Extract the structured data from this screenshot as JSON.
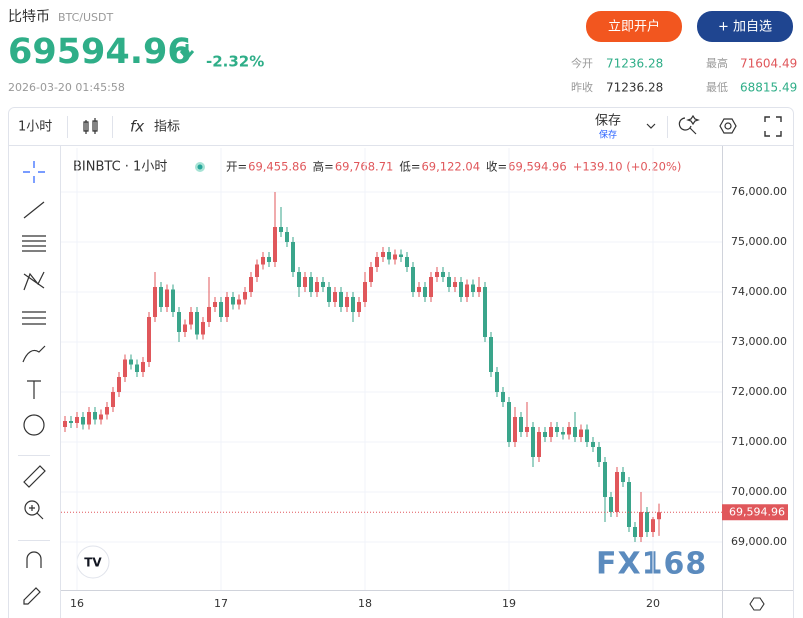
{
  "header": {
    "name": "比特币",
    "symbol": "BTC/USDT",
    "price": "69594.96",
    "change": "-2.32%",
    "time": "2026-03-20 01:45:58",
    "buttons": [
      "立即开户",
      "+ 加自选"
    ],
    "stats": [
      {
        "label": "今开",
        "value": "71236.28"
      },
      {
        "label": "最高",
        "value": "71604.49"
      },
      {
        "label": "昨收",
        "value": "71236.28"
      },
      {
        "label": "最低",
        "value": "68815.49"
      }
    ]
  },
  "toolbar": {
    "interval": "1小时",
    "indicators": "指标",
    "save": "保存",
    "save_sub": "保存"
  },
  "chart_data": {
    "type": "candlestick",
    "symbol": "BINBTC · 1小时",
    "legend": [
      {
        "label": "开=",
        "value": "69,455.86"
      },
      {
        "label": "高=",
        "value": "69,768.71"
      },
      {
        "label": "低=",
        "value": "69,122.04"
      },
      {
        "label": "收=",
        "value": "69,594.96"
      }
    ],
    "legend_change": "+139.10 (+0.20%)",
    "watermark": "FX168",
    "up_color": "#e0575b",
    "down_color": "#3aa58b",
    "grid": true,
    "categories": [
      null,
      null,
      "16",
      null,
      null,
      null,
      null,
      null,
      null,
      null,
      null,
      null,
      null,
      null,
      null,
      null,
      null,
      null,
      null,
      null,
      null,
      null,
      null,
      null,
      null,
      null,
      "17",
      null,
      null,
      null,
      null,
      null,
      null,
      null,
      null,
      null,
      null,
      null,
      null,
      null,
      null,
      null,
      null,
      null,
      null,
      null,
      null,
      null,
      null,
      null,
      "18",
      null,
      null,
      null,
      null,
      null,
      null,
      null,
      null,
      null,
      null,
      null,
      null,
      null,
      null,
      null,
      null,
      null,
      null,
      null,
      null,
      null,
      null,
      null,
      "19",
      null,
      null,
      null,
      null,
      null,
      null,
      null,
      null,
      null,
      null,
      null,
      null,
      null,
      null,
      null,
      null,
      null,
      null,
      null,
      null,
      null,
      null,
      null,
      "20",
      null
    ],
    "open": [
      71300,
      71420,
      71380,
      71500,
      71350,
      71600,
      71450,
      71550,
      71700,
      72000,
      72300,
      72650,
      72550,
      72400,
      72600,
      73500,
      74100,
      73700,
      74050,
      73600,
      73200,
      73350,
      73600,
      73150,
      73400,
      73700,
      73800,
      73500,
      73900,
      73750,
      73850,
      74000,
      74300,
      74550,
      74700,
      74600,
      75300,
      75200,
      75000,
      74400,
      74100,
      74300,
      74000,
      74200,
      74100,
      73800,
      74000,
      73700,
      73900,
      73600,
      73800,
      74200,
      74500,
      74700,
      74800,
      74650,
      74750,
      74700,
      74500,
      74000,
      74100,
      73900,
      74300,
      74400,
      74300,
      74100,
      74200,
      73900,
      74150,
      74000,
      74100,
      73100,
      72400,
      72000,
      71800,
      71000,
      71500,
      71200,
      71300,
      70700,
      71200,
      71100,
      71300,
      71200,
      71150,
      71300,
      71100,
      71250,
      71000,
      70900,
      70600,
      69900,
      69600,
      70400,
      70200,
      69300,
      69100,
      69600,
      69200,
      69455.86
    ],
    "high": [
      71520,
      71520,
      71600,
      71600,
      71700,
      71700,
      71650,
      71800,
      72100,
      72400,
      72750,
      72750,
      72650,
      72700,
      73600,
      74400,
      74200,
      74150,
      74150,
      73700,
      73450,
      73700,
      73700,
      73500,
      74300,
      73900,
      73900,
      74000,
      74000,
      73950,
      74100,
      74400,
      74650,
      74800,
      74800,
      76000,
      75700,
      75300,
      75100,
      74500,
      74400,
      74400,
      74300,
      74300,
      74200,
      74100,
      74100,
      74000,
      74000,
      73900,
      74400,
      74600,
      74800,
      74900,
      74900,
      74850,
      74850,
      74800,
      74600,
      74200,
      74200,
      74400,
      74500,
      74500,
      74400,
      74300,
      74300,
      74250,
      74250,
      74300,
      74200,
      73200,
      72500,
      72100,
      71900,
      71700,
      71600,
      71800,
      71400,
      71300,
      71300,
      71400,
      71400,
      71300,
      71400,
      71600,
      71350,
      71350,
      71100,
      71000,
      70700,
      70000,
      70500,
      70500,
      70300,
      69400,
      70000,
      69700,
      69500,
      69768.71
    ],
    "low": [
      71200,
      71280,
      71280,
      71250,
      71250,
      71350,
      71350,
      71450,
      71600,
      71900,
      72200,
      72450,
      72300,
      72300,
      72500,
      73400,
      73600,
      73600,
      73500,
      73000,
      73100,
      73250,
      73050,
      73050,
      73300,
      73600,
      73400,
      73400,
      73650,
      73650,
      73750,
      73900,
      74200,
      74450,
      74500,
      74500,
      75100,
      74900,
      74300,
      73900,
      74000,
      73900,
      73900,
      74000,
      73700,
      73700,
      73600,
      73600,
      73400,
      73500,
      73700,
      74100,
      74400,
      74600,
      74550,
      74550,
      74600,
      74400,
      73900,
      73900,
      73800,
      73800,
      74200,
      74200,
      74000,
      74000,
      73800,
      73800,
      73900,
      73900,
      73000,
      72300,
      71900,
      71700,
      70900,
      70900,
      71100,
      71100,
      70500,
      70600,
      71000,
      71000,
      71100,
      71050,
      71050,
      71000,
      71000,
      70900,
      70800,
      70500,
      69400,
      69500,
      69500,
      70100,
      69200,
      69000,
      69000,
      69100,
      69100,
      69122.04
    ],
    "close": [
      71420,
      71380,
      71500,
      71350,
      71600,
      71450,
      71550,
      71700,
      72000,
      72300,
      72650,
      72550,
      72400,
      72600,
      73500,
      74100,
      73700,
      74050,
      73600,
      73200,
      73350,
      73600,
      73150,
      73400,
      73700,
      73800,
      73500,
      73900,
      73750,
      73850,
      74000,
      74300,
      74550,
      74700,
      74600,
      75300,
      75200,
      75000,
      74400,
      74100,
      74300,
      74000,
      74200,
      74100,
      73800,
      74000,
      73700,
      73900,
      73600,
      73800,
      74200,
      74500,
      74700,
      74800,
      74650,
      74750,
      74700,
      74500,
      74000,
      74100,
      73900,
      74300,
      74400,
      74300,
      74100,
      74200,
      73900,
      74150,
      74000,
      74100,
      73100,
      72400,
      72000,
      71800,
      71000,
      71500,
      71200,
      71300,
      70700,
      71200,
      71100,
      71300,
      71200,
      71150,
      71300,
      71100,
      71250,
      71000,
      70900,
      70600,
      69900,
      69600,
      70400,
      70200,
      69300,
      69100,
      69600,
      69200,
      69455.86,
      69594.96
    ],
    "ylim": [
      68040,
      76880
    ],
    "yticks": [
      {
        "value": 69000,
        "label": "69,000.00"
      },
      {
        "value": 70000,
        "label": "70,000.00"
      },
      {
        "value": 71000,
        "label": "71,000.00"
      },
      {
        "value": 72000,
        "label": "72,000.00"
      },
      {
        "value": 73000,
        "label": "73,000.00"
      },
      {
        "value": 74000,
        "label": "74,000.00"
      },
      {
        "value": 75000,
        "label": "75,000.00"
      },
      {
        "value": 76000,
        "label": "76,000.00"
      }
    ],
    "price_line": {
      "value": 69594.96,
      "label": "69,594.96"
    }
  }
}
